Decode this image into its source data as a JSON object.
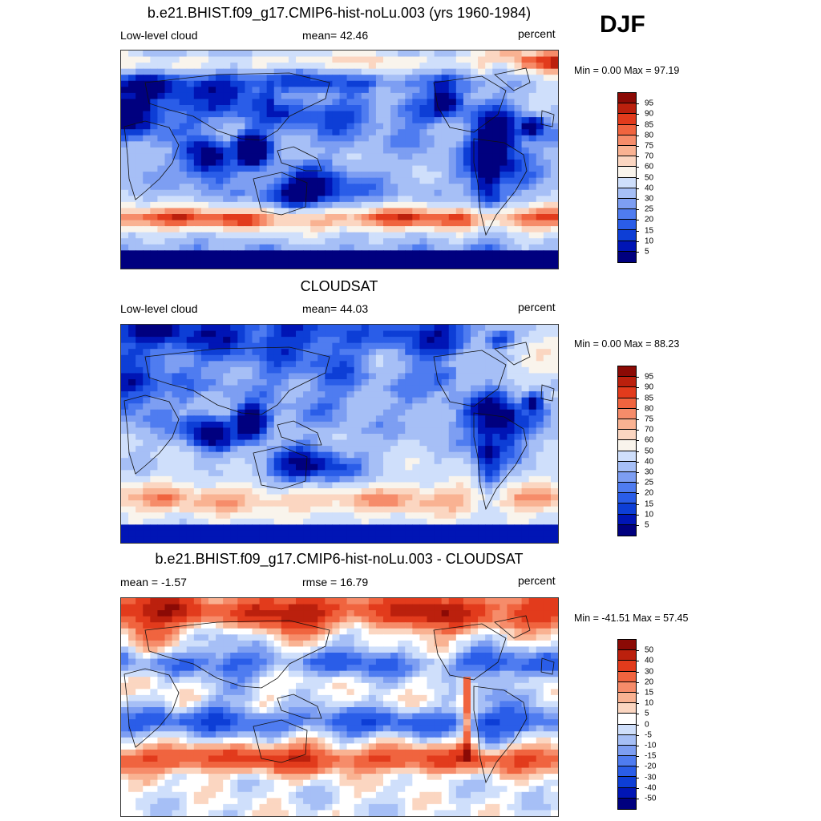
{
  "season": "DJF",
  "colors": {
    "abs_scale": [
      "#00007f",
      "#0015b5",
      "#0d3ed6",
      "#2a5de8",
      "#4f7cf0",
      "#7d9ef2",
      "#a6bff6",
      "#cfdffb",
      "#f9f4ec",
      "#fbd6c1",
      "#f9b292",
      "#f68c6a",
      "#f0643f",
      "#e23b1c",
      "#bb200d",
      "#8b0a05"
    ],
    "diff_scale": [
      "#00007f",
      "#0015b5",
      "#0d3ed6",
      "#2a5de8",
      "#4f7cf0",
      "#7d9ef2",
      "#a6bff6",
      "#cfdffb",
      "#ffffff",
      "#fbd6c1",
      "#f9b292",
      "#f68c6a",
      "#f0643f",
      "#e23b1c",
      "#bb200d",
      "#8b0a05"
    ]
  },
  "chart_data": [
    {
      "type": "heatmap",
      "title": "b.e21.BHIST.f09_g17.CMIP6-hist-noLu.003 (yrs 1960-1984)",
      "left_label": "Low-level cloud",
      "center_label": "mean=  42.46",
      "units": "percent",
      "minmax": "Min =   0.00 Max =  97.19",
      "colorbar_levels": [
        "95",
        "90",
        "85",
        "80",
        "75",
        "70",
        "60",
        "50",
        "40",
        "30",
        "25",
        "20",
        "15",
        "10",
        "5"
      ],
      "variant": "model"
    },
    {
      "type": "heatmap",
      "title": "CLOUDSAT",
      "left_label": "Low-level cloud",
      "center_label": "mean=  44.03",
      "units": "percent",
      "minmax": "Min =   0.00 Max =  88.23",
      "colorbar_levels": [
        "95",
        "90",
        "85",
        "80",
        "75",
        "70",
        "60",
        "50",
        "40",
        "30",
        "25",
        "20",
        "15",
        "10",
        "5"
      ],
      "variant": "obs"
    },
    {
      "type": "heatmap",
      "title": "b.e21.BHIST.f09_g17.CMIP6-hist-noLu.003 - CLOUDSAT",
      "left_label": "mean =  -1.57",
      "center_label": "rmse =  16.79",
      "units": "percent",
      "minmax": "Min = -41.51 Max =  57.45",
      "colorbar_levels": [
        "50",
        "40",
        "30",
        "20",
        "15",
        "10",
        "5",
        "0",
        "-5",
        "-10",
        "-15",
        "-20",
        "-30",
        "-40",
        "-50"
      ],
      "variant": "diff"
    }
  ]
}
